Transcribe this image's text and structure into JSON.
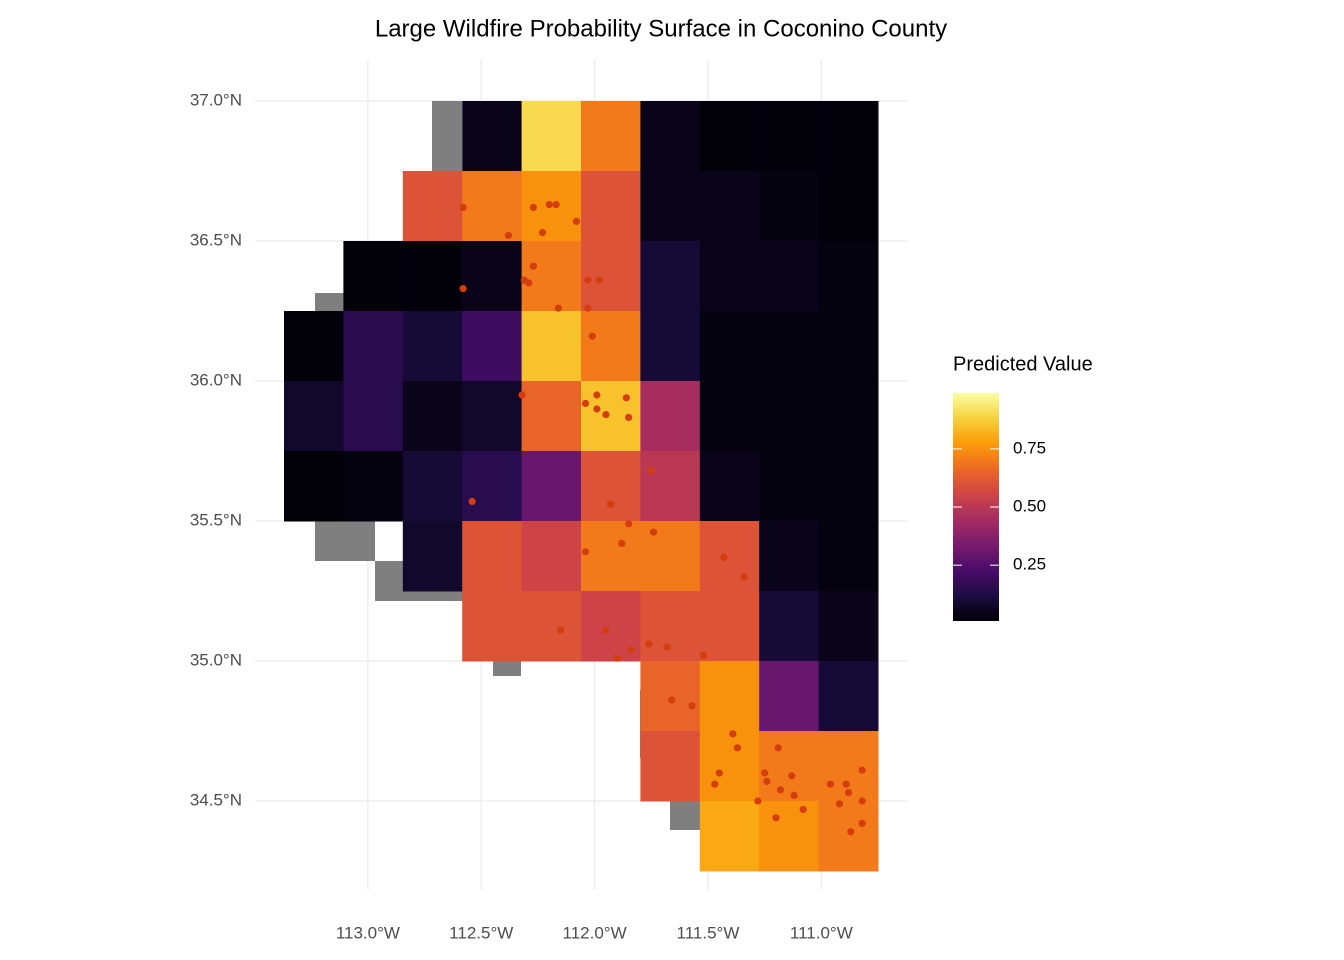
{
  "chart_data": {
    "type": "raster",
    "title": "Large Wildfire Probability Surface in Coconino County",
    "legend_title": "Predicted Value",
    "xlim": [
      -113.37,
      -110.75
    ],
    "ylim": [
      34.25,
      37.0
    ],
    "xticks": [
      {
        "value": -113.0,
        "label": "113.0°W"
      },
      {
        "value": -112.5,
        "label": "112.5°W"
      },
      {
        "value": -112.0,
        "label": "112.0°W"
      },
      {
        "value": -111.5,
        "label": "111.5°W"
      },
      {
        "value": -111.0,
        "label": "111.0°W"
      }
    ],
    "yticks": [
      {
        "value": 34.5,
        "label": "34.5°N"
      },
      {
        "value": 35.0,
        "label": "35.0°N"
      },
      {
        "value": 35.5,
        "label": "35.5°N"
      },
      {
        "value": 36.0,
        "label": "36.0°N"
      },
      {
        "value": 36.5,
        "label": "36.5°N"
      },
      {
        "value": 37.0,
        "label": "37.0°N"
      }
    ],
    "grid": true,
    "clim": [
      0.01,
      0.99
    ],
    "legend_ticks": [
      0.25,
      {
        "value": 0.5,
        "label": "0.50"
      },
      0.75
    ],
    "palette": [
      "#000004",
      "#1b0c41",
      "#4a0c6b",
      "#781c6d",
      "#a52c60",
      "#cf4446",
      "#ed6925",
      "#fb9b06",
      "#f7d13d",
      "#fcffa4"
    ],
    "raster": {
      "values": [
        [
          null,
          null,
          null,
          0.05,
          0.9,
          0.7,
          0.05,
          0.02,
          0.02,
          0.02
        ],
        [
          null,
          null,
          0.6,
          0.7,
          0.75,
          0.6,
          0.05,
          0.05,
          0.03,
          0.02
        ],
        [
          null,
          0.02,
          0.02,
          0.05,
          0.7,
          0.6,
          0.1,
          0.05,
          0.05,
          0.03
        ],
        [
          0.02,
          0.15,
          0.1,
          0.2,
          0.85,
          0.7,
          0.1,
          0.03,
          0.03,
          0.03
        ],
        [
          0.08,
          0.15,
          0.05,
          0.08,
          0.65,
          0.85,
          0.45,
          0.03,
          0.03,
          0.03
        ],
        [
          0.02,
          0.03,
          0.1,
          0.15,
          0.3,
          0.6,
          0.5,
          0.05,
          0.03,
          0.03
        ],
        [
          null,
          null,
          0.08,
          0.6,
          0.55,
          0.7,
          0.7,
          0.6,
          0.05,
          0.03
        ],
        [
          null,
          null,
          null,
          0.6,
          0.6,
          0.55,
          0.6,
          0.6,
          0.1,
          0.05
        ],
        [
          null,
          null,
          null,
          null,
          null,
          null,
          0.65,
          0.75,
          0.3,
          0.1
        ],
        [
          null,
          null,
          null,
          null,
          null,
          null,
          0.6,
          0.75,
          0.7,
          0.7
        ],
        [
          null,
          null,
          null,
          null,
          null,
          null,
          null,
          0.8,
          0.75,
          0.7
        ]
      ]
    },
    "points": {
      "color": "#d43d0d",
      "lon": [
        -112.58,
        -112.27,
        -112.2,
        -112.17,
        -112.08,
        -112.38,
        -112.23,
        -112.27,
        -112.31,
        -112.29,
        -112.03,
        -111.98,
        -112.58,
        -112.16,
        -112.03,
        -112.01,
        -112.32,
        -112.04,
        -111.99,
        -111.99,
        -111.95,
        -111.86,
        -111.85,
        -111.75,
        -112.54,
        -111.93,
        -111.85,
        -111.74,
        -111.88,
        -112.04,
        -111.43,
        -111.34,
        -112.15,
        -111.95,
        -111.84,
        -111.9,
        -111.76,
        -111.68,
        -111.52,
        -111.66,
        -111.57,
        -111.39,
        -111.37,
        -111.19,
        -111.45,
        -111.47,
        -111.25,
        -111.24,
        -111.13,
        -111.18,
        -111.12,
        -110.96,
        -110.89,
        -110.82,
        -110.88,
        -110.92,
        -110.82,
        -111.28,
        -111.08,
        -111.2,
        -110.82,
        -110.87
      ],
      "lat": [
        36.62,
        36.62,
        36.63,
        36.63,
        36.57,
        36.52,
        36.53,
        36.41,
        36.36,
        36.35,
        36.36,
        36.36,
        36.33,
        36.26,
        36.26,
        36.16,
        35.95,
        35.92,
        35.95,
        35.9,
        35.88,
        35.94,
        35.87,
        35.68,
        35.57,
        35.56,
        35.49,
        35.46,
        35.42,
        35.39,
        35.37,
        35.3,
        35.11,
        35.11,
        35.04,
        35.01,
        35.06,
        35.05,
        35.02,
        34.86,
        34.84,
        34.74,
        34.69,
        34.69,
        34.6,
        34.56,
        34.6,
        34.57,
        34.59,
        34.54,
        34.52,
        34.56,
        34.56,
        34.61,
        34.53,
        34.49,
        34.5,
        34.5,
        34.47,
        34.44,
        34.42,
        34.39
      ]
    }
  }
}
